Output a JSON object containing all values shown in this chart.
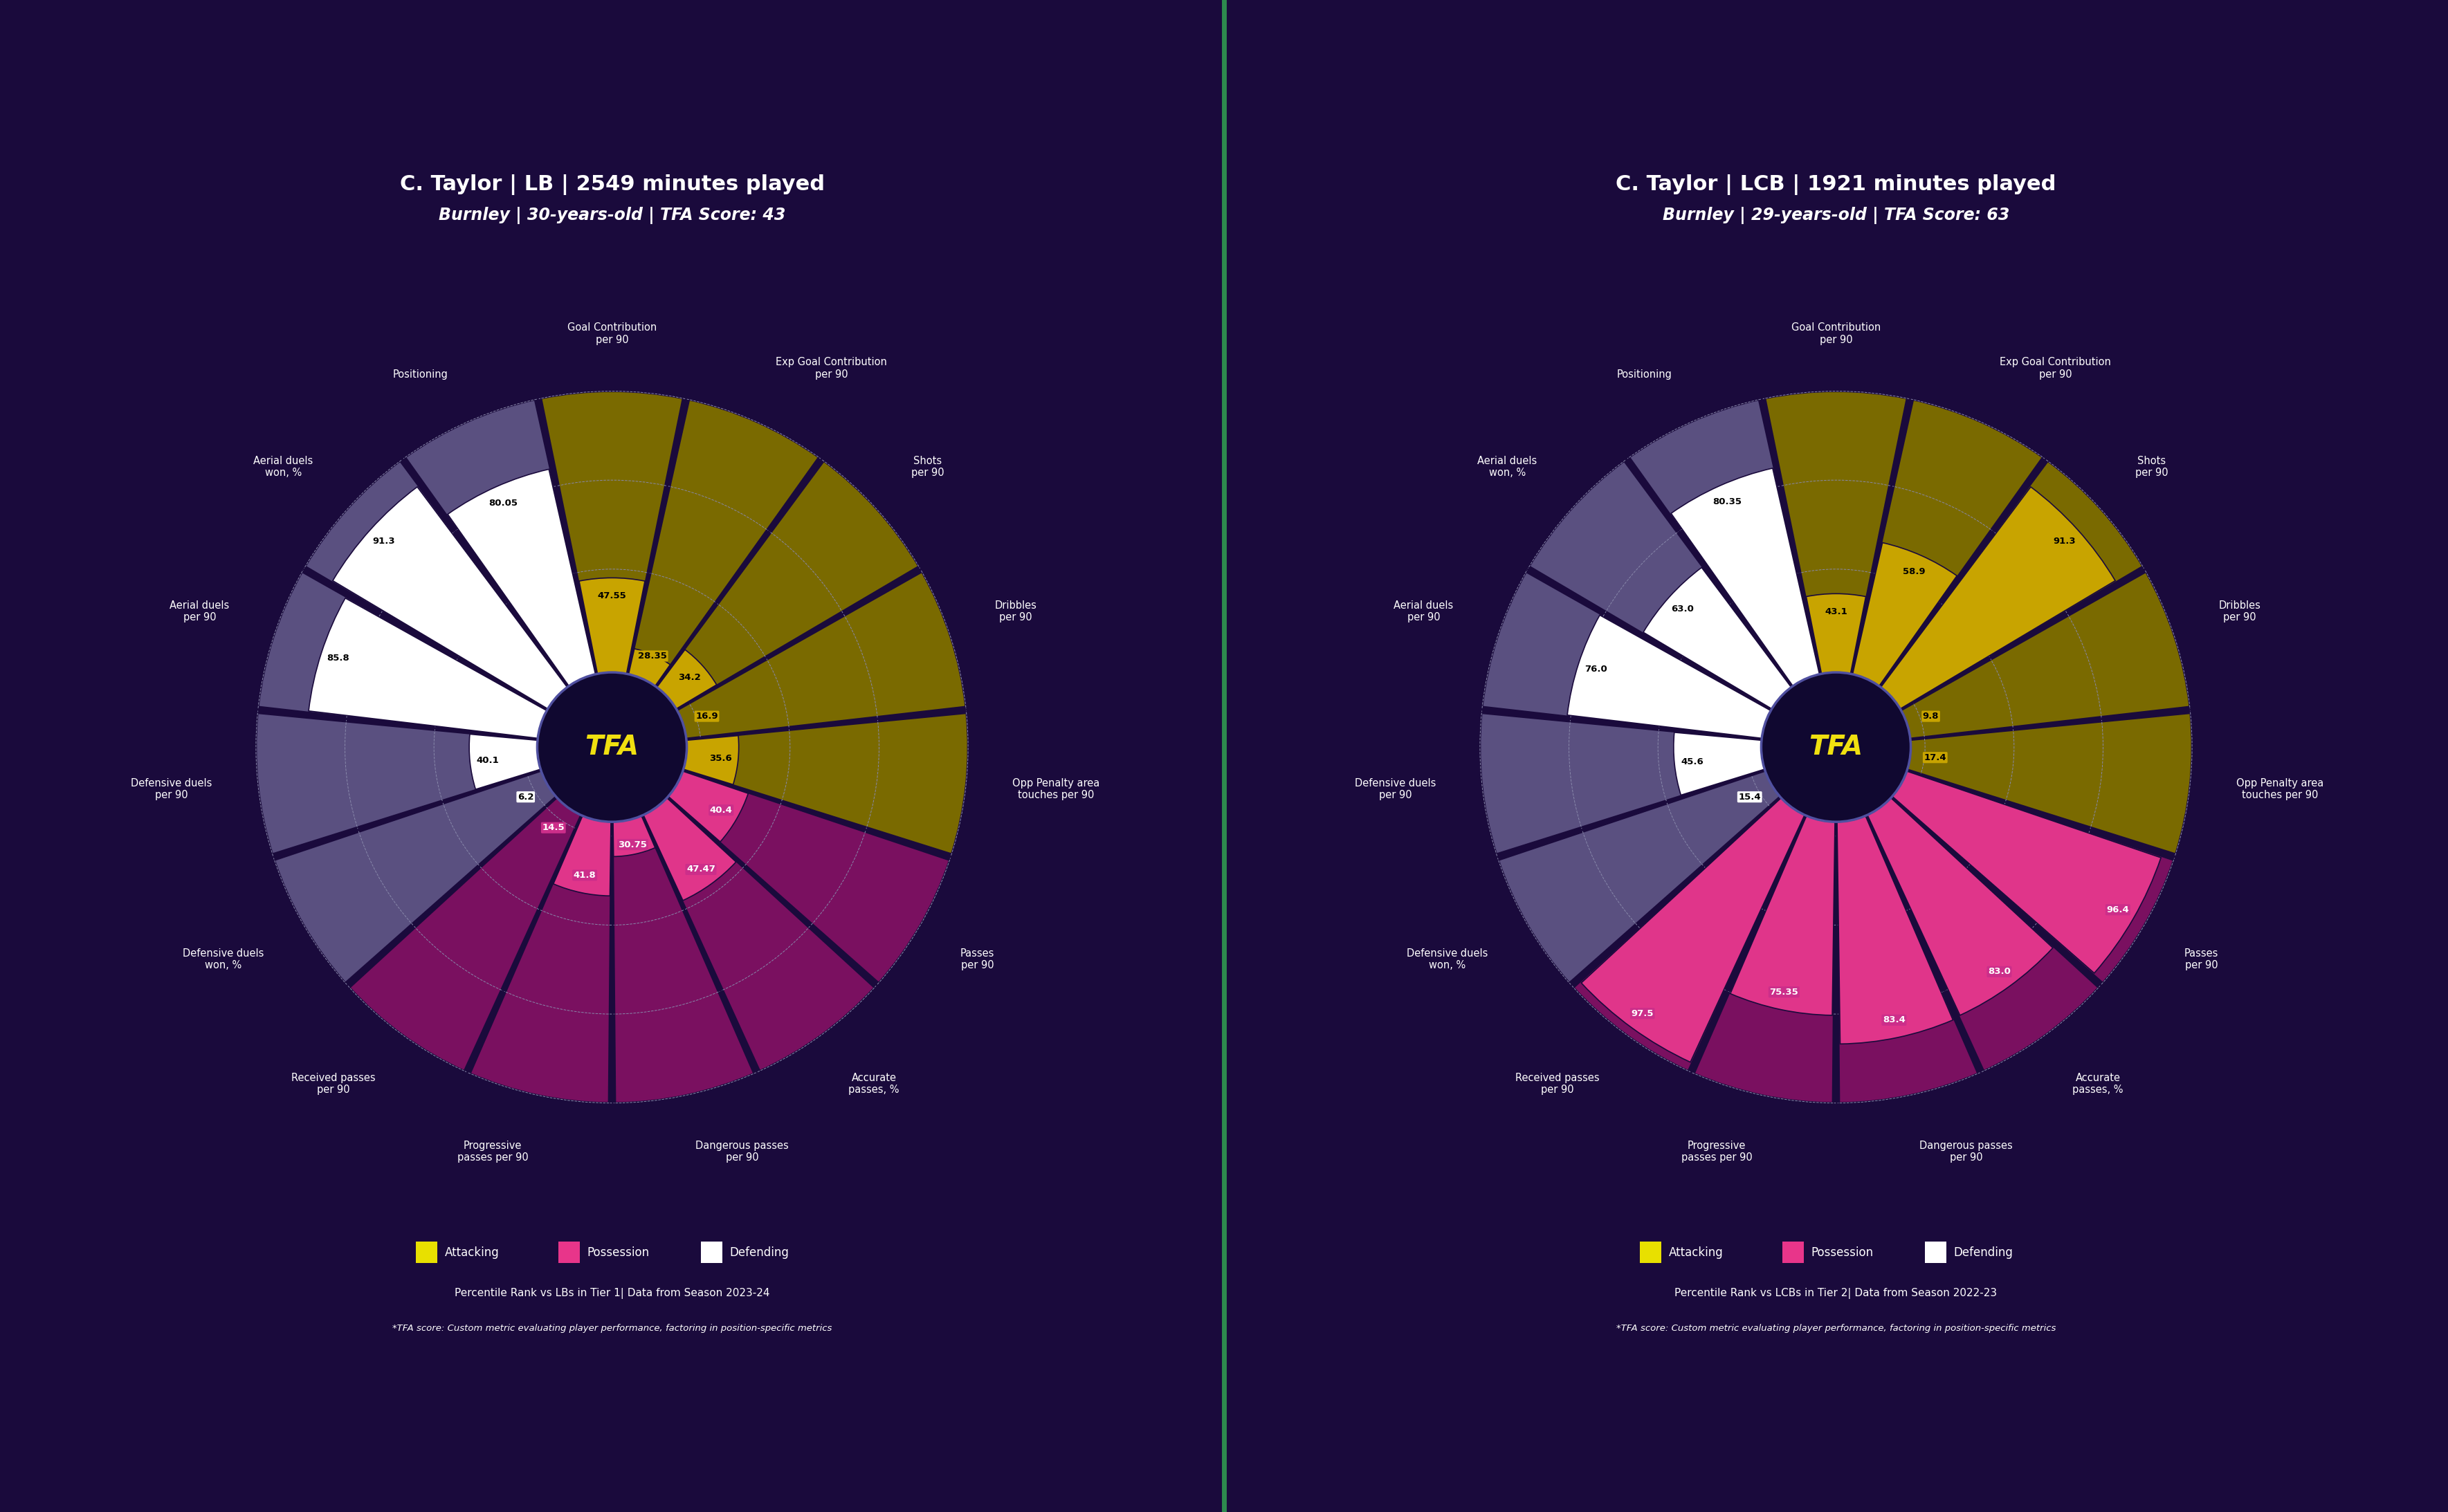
{
  "background_color": "#1a0a3c",
  "divider_color": "#2d8a4e",
  "chart1": {
    "title_line1": "C. Taylor | LB | 2549 minutes played",
    "title_line2": "Burnley | 30-years-old | TFA Score: 43",
    "subtitle": "Percentile Rank vs LBs in Tier 1| Data from Season 2023-24",
    "footnote": "*TFA score: Custom metric evaluating player performance, factoring in position-specific metrics",
    "categories": [
      "Goal Contribution\nper 90",
      "Exp Goal Contribution\nper 90",
      "Shots\nper 90",
      "Dribbles\nper 90",
      "Opp Penalty area\ntouches per 90",
      "Passes\nper 90",
      "Accurate\npasses, %",
      "Dangerous passes\nper 90",
      "Progressive\npasses per 90",
      "Received passes\nper 90",
      "Defensive duels\nwon, %",
      "Defensive duels\nper 90",
      "Aerial duels\nper 90",
      "Aerial duels\nwon, %",
      "Positioning"
    ],
    "values": [
      47.55,
      28.35,
      34.2,
      16.9,
      35.6,
      40.4,
      47.47,
      30.75,
      41.8,
      14.5,
      6.2,
      40.1,
      85.8,
      91.3,
      80.05
    ],
    "sector_colors": [
      "#c8a400",
      "#c8a400",
      "#c8a400",
      "#c8a400",
      "#c8a400",
      "#e0358a",
      "#e0358a",
      "#e0358a",
      "#e0358a",
      "#e0358a",
      "#ffffff",
      "#ffffff",
      "#ffffff",
      "#ffffff",
      "#ffffff"
    ],
    "bg_sector_colors": [
      "#7a6a00",
      "#7a6a00",
      "#7a6a00",
      "#7a6a00",
      "#7a6a00",
      "#7a1060",
      "#7a1060",
      "#7a1060",
      "#7a1060",
      "#7a1060",
      "#5a5080",
      "#5a5080",
      "#5a5080",
      "#5a5080",
      "#5a5080"
    ],
    "value_box_colors": [
      "#c8a400",
      "#c8a400",
      "#c8a400",
      "#c8a400",
      "#c8a400",
      "#cc2e8a",
      "#cc2e8a",
      "#cc2e8a",
      "#cc2e8a",
      "#cc2e8a",
      "#ffffff",
      "#ffffff",
      "#ffffff",
      "#ffffff",
      "#ffffff"
    ],
    "value_text_colors": [
      "#000000",
      "#000000",
      "#000000",
      "#000000",
      "#000000",
      "#ffffff",
      "#ffffff",
      "#ffffff",
      "#ffffff",
      "#ffffff",
      "#000000",
      "#000000",
      "#000000",
      "#000000",
      "#000000"
    ]
  },
  "chart2": {
    "title_line1": "C. Taylor | LCB | 1921 minutes played",
    "title_line2": "Burnley | 29-years-old | TFA Score: 63",
    "subtitle": "Percentile Rank vs LCBs in Tier 2| Data from Season 2022-23",
    "footnote": "*TFA score: Custom metric evaluating player performance, factoring in position-specific metrics",
    "categories": [
      "Goal Contribution\nper 90",
      "Exp Goal Contribution\nper 90",
      "Shots\nper 90",
      "Dribbles\nper 90",
      "Opp Penalty area\ntouches per 90",
      "Passes\nper 90",
      "Accurate\npasses, %",
      "Dangerous passes\nper 90",
      "Progressive\npasses per 90",
      "Received passes\nper 90",
      "Defensive duels\nwon, %",
      "Defensive duels\nper 90",
      "Aerial duels\nper 90",
      "Aerial duels\nwon, %",
      "Positioning"
    ],
    "values": [
      43.1,
      58.9,
      91.3,
      9.8,
      17.4,
      96.4,
      83.0,
      83.4,
      75.35,
      97.5,
      15.4,
      45.6,
      76.0,
      63.0,
      80.35
    ],
    "sector_colors": [
      "#c8a400",
      "#c8a400",
      "#c8a400",
      "#c8a400",
      "#c8a400",
      "#e0358a",
      "#e0358a",
      "#e0358a",
      "#e0358a",
      "#e0358a",
      "#ffffff",
      "#ffffff",
      "#ffffff",
      "#ffffff",
      "#ffffff"
    ],
    "bg_sector_colors": [
      "#7a6a00",
      "#7a6a00",
      "#7a6a00",
      "#7a6a00",
      "#7a6a00",
      "#7a1060",
      "#7a1060",
      "#7a1060",
      "#7a1060",
      "#7a1060",
      "#5a5080",
      "#5a5080",
      "#5a5080",
      "#5a5080",
      "#5a5080"
    ],
    "value_box_colors": [
      "#c8a400",
      "#c8a400",
      "#c8a400",
      "#c8a400",
      "#c8a400",
      "#cc2e8a",
      "#cc2e8a",
      "#cc2e8a",
      "#cc2e8a",
      "#cc2e8a",
      "#ffffff",
      "#ffffff",
      "#ffffff",
      "#ffffff",
      "#ffffff"
    ],
    "value_text_colors": [
      "#000000",
      "#000000",
      "#000000",
      "#000000",
      "#000000",
      "#ffffff",
      "#ffffff",
      "#ffffff",
      "#ffffff",
      "#ffffff",
      "#000000",
      "#000000",
      "#000000",
      "#000000",
      "#000000"
    ]
  },
  "legend": {
    "attacking_color": "#e8e000",
    "possession_color": "#e8358a",
    "defending_color": "#ffffff",
    "labels": [
      "Attacking",
      "Possession",
      "Defending"
    ]
  },
  "center_label": "TFA",
  "max_value": 100,
  "n_rings": 4
}
